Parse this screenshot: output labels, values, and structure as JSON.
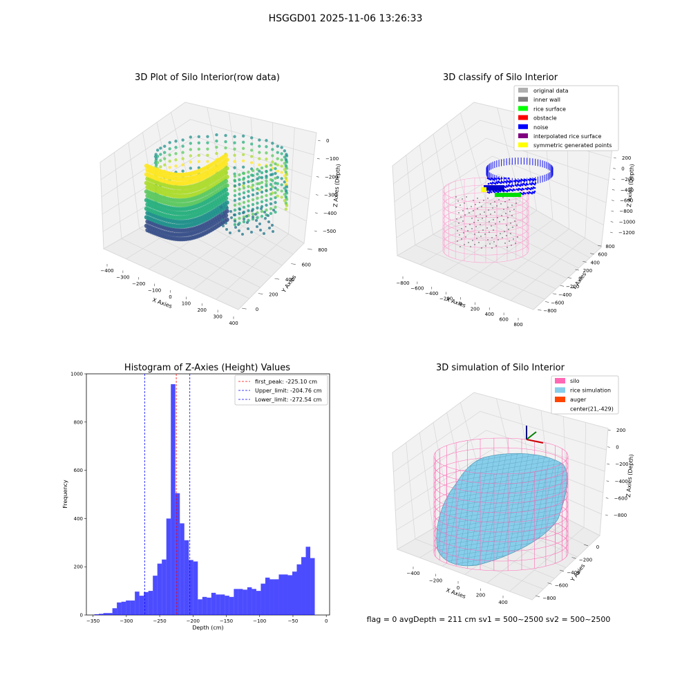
{
  "figure": {
    "suptitle": "HSGGD01 2025-11-06 13:26:33",
    "status_text": "flag = 0     avgDepth = 211 cm  sv1 = 500~2500  sv2 = 500~2500"
  },
  "colors": {
    "hist_bar": "#0000ff",
    "first_peak_line": "#ff0000",
    "limit_line": "#0000ff",
    "silo_wire": "#ff69b4",
    "rice_sim": "#87ceeb",
    "noise": "#0000ee",
    "surface": "#00ff00",
    "yellow": "#ffff00"
  },
  "chart_data": [
    {
      "type": "scatter",
      "panel": "top-left",
      "title": "3D Plot of Silo Interior(row data)",
      "xlabel": "X Axies",
      "ylabel": "Y Axies",
      "zlabel": "Z Axies (Depth)",
      "xticks": [
        "−400",
        "−300",
        "−200",
        "−100",
        "0",
        "100",
        "200",
        "300",
        "400"
      ],
      "yticks": [
        "0",
        "200",
        "400",
        "600",
        "800"
      ],
      "zticks": [
        "0",
        "−100",
        "−200",
        "−300",
        "−400",
        "−500"
      ],
      "colormap": "viridis"
    },
    {
      "type": "scatter",
      "panel": "top-right",
      "title": "3D classify of Silo Interior",
      "xlabel": "X Axies",
      "ylabel": "Y Axies",
      "zlabel": "Z Axies (Depth)",
      "xticks": [
        "−800",
        "−600",
        "−400",
        "−200",
        "0",
        "200",
        "400",
        "600",
        "800"
      ],
      "yticks": [
        "−800",
        "−600",
        "−400",
        "−200",
        "0",
        "200",
        "400",
        "600",
        "800"
      ],
      "zticks": [
        "200",
        "0",
        "−200",
        "−400",
        "−600",
        "−800",
        "−1000",
        "−1200"
      ],
      "legend": [
        {
          "label": "original data",
          "color": "#b0b0b0"
        },
        {
          "label": "inner wall",
          "color": "#808080"
        },
        {
          "label": "rice surface",
          "color": "#00ff00"
        },
        {
          "label": "obstacle",
          "color": "#ff0000"
        },
        {
          "label": "noise",
          "color": "#0000ff"
        },
        {
          "label": "interpolated rice surface",
          "color": "#800080"
        },
        {
          "label": "symmetric generated points",
          "color": "#ffff00"
        }
      ],
      "legend_position": "top-right"
    },
    {
      "type": "bar",
      "panel": "bottom-left",
      "title": "Histogram of Z-Axies (Height) Values",
      "xlabel": "Depth (cm)",
      "ylabel": "Frequency",
      "xlim": [
        -360,
        5
      ],
      "ylim": [
        0,
        1000
      ],
      "xticks": [
        -350,
        -300,
        -250,
        -200,
        -150,
        -100,
        -50,
        0
      ],
      "yticks": [
        0,
        200,
        400,
        600,
        800,
        1000
      ],
      "bin_start": -348,
      "bin_width": 6.75,
      "values": [
        3,
        5,
        8,
        8,
        28,
        52,
        55,
        60,
        60,
        97,
        80,
        95,
        100,
        163,
        213,
        230,
        400,
        957,
        505,
        380,
        310,
        228,
        222,
        65,
        75,
        72,
        92,
        85,
        85,
        80,
        75,
        108,
        108,
        105,
        115,
        108,
        100,
        130,
        155,
        148,
        148,
        168,
        168,
        165,
        180,
        210,
        240,
        283,
        236
      ],
      "vlines": [
        {
          "label": "first_peak: -225.10 cm",
          "x": -225.1,
          "color": "#ff0000"
        },
        {
          "label": "Upper_limit: -204.76 cm",
          "x": -204.76,
          "color": "#0000ff"
        },
        {
          "label": "Lower_limit: -272.54 cm",
          "x": -272.54,
          "color": "#0000ff"
        }
      ],
      "legend_position": "top-right"
    },
    {
      "type": "scatter",
      "panel": "bottom-right",
      "title": "3D simulation of Silo Interior",
      "xlabel": "X Axies",
      "ylabel": "Y Axies",
      "zlabel": "Z Axies (Depth)",
      "xticks": [
        "−400",
        "−200",
        "0",
        "200",
        "400"
      ],
      "yticks": [
        "0",
        "−200",
        "−400",
        "−600",
        "−800"
      ],
      "zticks": [
        "200",
        "0",
        "−200",
        "−400",
        "−600",
        "−800"
      ],
      "legend": [
        {
          "label": "silo",
          "color": "#ff69b4"
        },
        {
          "label": "rice simulation",
          "color": "#87ceeb"
        },
        {
          "label": "auger",
          "color": "#ff4500"
        },
        {
          "label": "center(21,-429)",
          "color": ""
        }
      ],
      "legend_position": "top-right"
    }
  ]
}
